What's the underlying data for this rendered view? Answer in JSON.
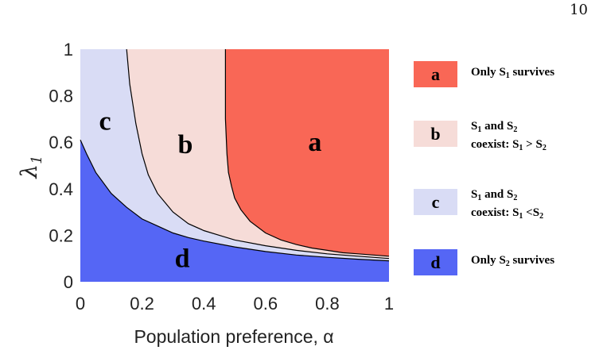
{
  "page_number": "10",
  "colors": {
    "a": "#f96756",
    "b": "#f6dcd8",
    "c": "#d9dcf5",
    "d": "#5566f5",
    "boundary": "#000000"
  },
  "chart_data": {
    "type": "area",
    "title": "",
    "xlabel": "Population preference, α",
    "ylabel": "λ1",
    "xlim": [
      0,
      1
    ],
    "ylim": [
      0,
      1
    ],
    "xticks": [
      "0",
      "0.2",
      "0.4",
      "0.6",
      "0.8",
      "1"
    ],
    "yticks": [
      "0",
      "0.2",
      "0.4",
      "0.6",
      "0.8",
      "1"
    ],
    "grid": false,
    "legend_position": "right",
    "regions": [
      {
        "key": "a",
        "label": "a",
        "description": [
          "Only S1 survives"
        ]
      },
      {
        "key": "b",
        "label": "b",
        "description": [
          "S1 and S2",
          "coexist: S1 > S2"
        ]
      },
      {
        "key": "c",
        "label": "c",
        "description": [
          "S1 and S2",
          "coexist: S1 <S2"
        ]
      },
      {
        "key": "d",
        "label": "d",
        "description": [
          "Only S2 survives"
        ]
      }
    ],
    "boundaries": {
      "d_c": {
        "x": [
          0,
          0.02,
          0.05,
          0.1,
          0.15,
          0.2,
          0.25,
          0.3,
          0.35,
          0.4,
          0.5,
          0.6,
          0.7,
          0.8,
          0.9,
          1.0
        ],
        "y": [
          0.61,
          0.55,
          0.47,
          0.38,
          0.32,
          0.27,
          0.24,
          0.21,
          0.19,
          0.175,
          0.15,
          0.13,
          0.115,
          0.105,
          0.097,
          0.09
        ]
      },
      "c_b": {
        "x": [
          0.15,
          0.16,
          0.18,
          0.2,
          0.22,
          0.25,
          0.3,
          0.35,
          0.4,
          0.45,
          0.5,
          0.6,
          0.7,
          0.8,
          0.9,
          1.0
        ],
        "y": [
          1.0,
          0.85,
          0.68,
          0.55,
          0.46,
          0.38,
          0.3,
          0.25,
          0.22,
          0.2,
          0.18,
          0.155,
          0.135,
          0.12,
          0.11,
          0.1
        ]
      },
      "b_a": {
        "x": [
          0.47,
          0.47,
          0.475,
          0.48,
          0.49,
          0.5,
          0.52,
          0.55,
          0.6,
          0.65,
          0.7,
          0.75,
          0.8,
          0.85,
          0.9,
          0.95,
          1.0
        ],
        "y": [
          1.0,
          0.7,
          0.55,
          0.47,
          0.41,
          0.36,
          0.31,
          0.26,
          0.21,
          0.18,
          0.16,
          0.145,
          0.135,
          0.125,
          0.12,
          0.115,
          0.11
        ]
      }
    },
    "region_labels": [
      {
        "text": "a",
        "x": 0.76,
        "y": 0.59
      },
      {
        "text": "b",
        "x": 0.34,
        "y": 0.58
      },
      {
        "text": "c",
        "x": 0.08,
        "y": 0.68
      },
      {
        "text": "d",
        "x": 0.33,
        "y": 0.09
      }
    ]
  }
}
